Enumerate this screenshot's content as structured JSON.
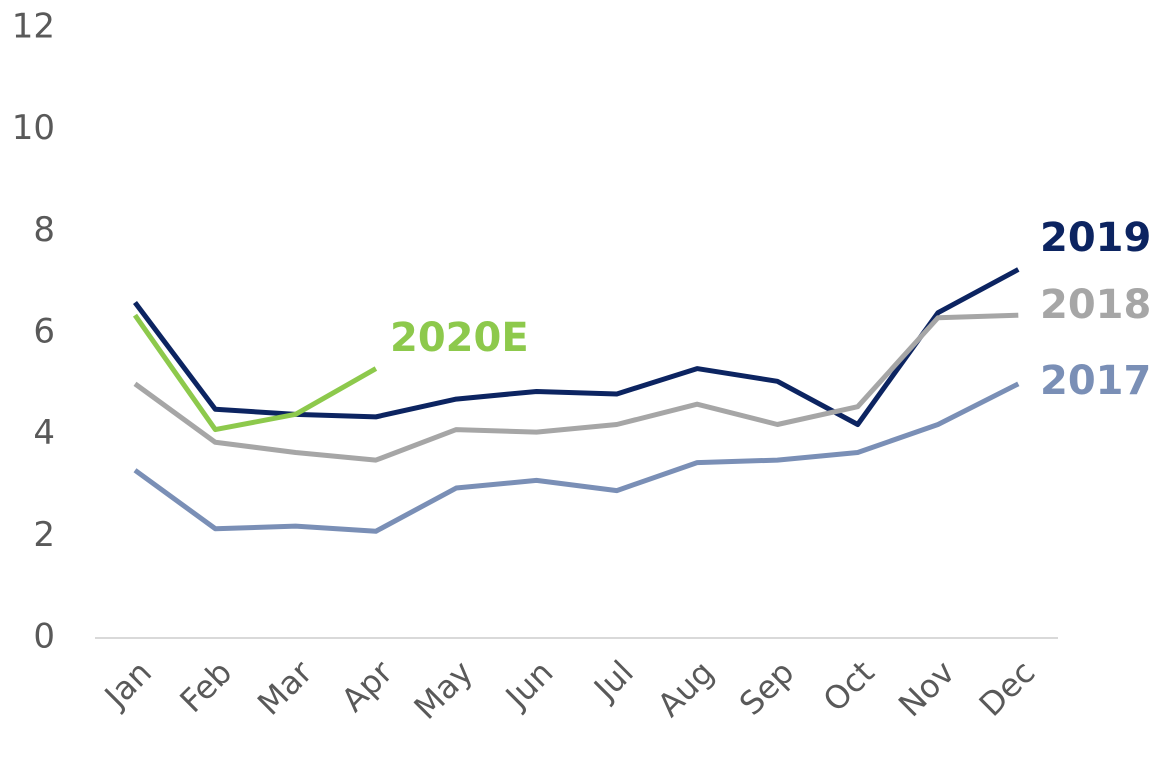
{
  "chart_data": {
    "type": "line",
    "categories": [
      "Jan",
      "Feb",
      "Mar",
      "Apr",
      "May",
      "Jun",
      "Jul",
      "Aug",
      "Sep",
      "Oct",
      "Nov",
      "Dec"
    ],
    "series": [
      {
        "name": "2019",
        "color": "#0c2461",
        "values": [
          6.6,
          4.5,
          4.4,
          4.35,
          4.7,
          4.85,
          4.8,
          5.3,
          5.05,
          4.2,
          6.4,
          7.25
        ]
      },
      {
        "name": "2018",
        "color": "#a6a6a6",
        "values": [
          5.0,
          3.85,
          3.65,
          3.5,
          4.1,
          4.05,
          4.2,
          4.6,
          4.2,
          4.55,
          6.3,
          6.35
        ]
      },
      {
        "name": "2017",
        "color": "#7a8fb6",
        "values": [
          3.3,
          2.15,
          2.2,
          2.1,
          2.95,
          3.1,
          2.9,
          3.45,
          3.5,
          3.65,
          4.2,
          5.0
        ]
      },
      {
        "name": "2020E",
        "color": "#8dc94c",
        "values": [
          6.35,
          4.1,
          4.4,
          5.3,
          null,
          null,
          null,
          null,
          null,
          null,
          null,
          null
        ]
      }
    ],
    "ylim": [
      0,
      12
    ],
    "yticks": [
      0,
      2,
      4,
      6,
      8,
      10,
      12
    ],
    "grid": false
  }
}
